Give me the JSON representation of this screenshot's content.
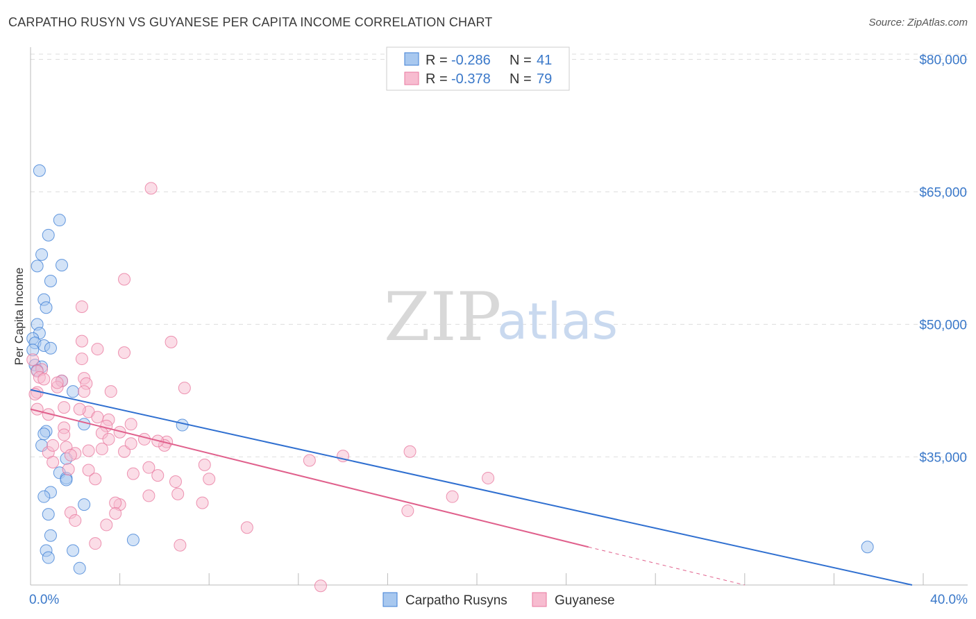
{
  "chart_data": {
    "type": "scatter",
    "title": "CARPATHO RUSYN VS GUYANESE PER CAPITA INCOME CORRELATION CHART",
    "source": "Source: ZipAtlas.com",
    "xlabel": "",
    "ylabel": "Per Capita Income",
    "xlim": [
      0,
      40
    ],
    "ylim": [
      20500,
      82000
    ],
    "x_tick_labels": [
      "0.0%",
      "40.0%"
    ],
    "y_ticks": [
      35000,
      50000,
      65000,
      80000
    ],
    "y_tick_labels": [
      "$35,000",
      "$50,000",
      "$65,000",
      "$80,000"
    ],
    "watermark": {
      "part1": "ZIP",
      "part2": "atlas"
    },
    "stats": [
      {
        "r_label": "R = ",
        "r": "-0.286",
        "n_label": "N = ",
        "n": "41"
      },
      {
        "r_label": "R = ",
        "r": "-0.378",
        "n_label": "N = ",
        "n": "79"
      }
    ],
    "colors": {
      "blue_fill": "#a8c8ef",
      "blue_stroke": "#3f7fd6",
      "blue_line": "#2f6fd0",
      "pink_fill": "#f7bcd0",
      "pink_stroke": "#e9799f",
      "pink_line": "#e0608c",
      "tick_text": "#3a78c9",
      "grid": "#dddddd"
    },
    "series": [
      {
        "name": "Carpatho Rusyns",
        "regression": {
          "x": [
            0,
            39.5
          ],
          "y": [
            42600,
            20500
          ],
          "dashed_from": null
        },
        "points": [
          [
            0.4,
            67400
          ],
          [
            1.3,
            61800
          ],
          [
            0.8,
            60100
          ],
          [
            0.5,
            57900
          ],
          [
            1.4,
            56700
          ],
          [
            0.3,
            56600
          ],
          [
            0.9,
            54900
          ],
          [
            0.6,
            52800
          ],
          [
            0.7,
            51900
          ],
          [
            0.3,
            50000
          ],
          [
            0.4,
            49000
          ],
          [
            0.1,
            48400
          ],
          [
            0.2,
            47900
          ],
          [
            0.6,
            47600
          ],
          [
            0.9,
            47300
          ],
          [
            0.1,
            47100
          ],
          [
            0.2,
            45400
          ],
          [
            0.5,
            45200
          ],
          [
            0.3,
            44800
          ],
          [
            1.4,
            43600
          ],
          [
            1.9,
            42400
          ],
          [
            0.7,
            37900
          ],
          [
            0.6,
            37600
          ],
          [
            0.5,
            36300
          ],
          [
            1.6,
            34800
          ],
          [
            1.3,
            33200
          ],
          [
            1.6,
            32600
          ],
          [
            1.6,
            32400
          ],
          [
            2.4,
            38700
          ],
          [
            0.9,
            31000
          ],
          [
            0.6,
            30500
          ],
          [
            2.4,
            29600
          ],
          [
            0.8,
            28500
          ],
          [
            0.9,
            26100
          ],
          [
            4.6,
            25600
          ],
          [
            0.7,
            24400
          ],
          [
            1.9,
            24400
          ],
          [
            0.8,
            23600
          ],
          [
            2.2,
            22400
          ],
          [
            37.5,
            24800
          ],
          [
            6.8,
            38600
          ]
        ]
      },
      {
        "name": "Guyanese",
        "regression": {
          "x": [
            0,
            25
          ],
          "y": [
            40400,
            24800
          ],
          "dashed_from": 25,
          "dashed_to": [
            32,
            20500
          ]
        },
        "points": [
          [
            5.4,
            65400
          ],
          [
            4.2,
            55100
          ],
          [
            2.3,
            52000
          ],
          [
            2.3,
            48100
          ],
          [
            6.3,
            48000
          ],
          [
            3.0,
            47200
          ],
          [
            4.2,
            46800
          ],
          [
            2.3,
            46100
          ],
          [
            0.1,
            46000
          ],
          [
            0.5,
            44900
          ],
          [
            0.3,
            44700
          ],
          [
            0.4,
            44000
          ],
          [
            1.4,
            43600
          ],
          [
            2.4,
            43900
          ],
          [
            1.2,
            42900
          ],
          [
            2.5,
            43300
          ],
          [
            0.3,
            42300
          ],
          [
            0.2,
            42100
          ],
          [
            3.6,
            42400
          ],
          [
            6.9,
            42800
          ],
          [
            2.4,
            42400
          ],
          [
            1.5,
            40600
          ],
          [
            0.3,
            40400
          ],
          [
            2.6,
            40100
          ],
          [
            0.8,
            39800
          ],
          [
            3.0,
            39500
          ],
          [
            3.5,
            39200
          ],
          [
            1.5,
            38300
          ],
          [
            3.4,
            38500
          ],
          [
            4.5,
            38700
          ],
          [
            1.5,
            37500
          ],
          [
            3.2,
            37700
          ],
          [
            4.0,
            37800
          ],
          [
            5.1,
            37000
          ],
          [
            3.5,
            37000
          ],
          [
            6.1,
            36700
          ],
          [
            6.0,
            36300
          ],
          [
            1.6,
            36100
          ],
          [
            3.2,
            35900
          ],
          [
            4.2,
            35600
          ],
          [
            2.0,
            35400
          ],
          [
            0.8,
            35500
          ],
          [
            2.6,
            35700
          ],
          [
            4.5,
            36500
          ],
          [
            5.7,
            36800
          ],
          [
            1.8,
            35200
          ],
          [
            17.0,
            35600
          ],
          [
            14.0,
            35100
          ],
          [
            12.5,
            34600
          ],
          [
            7.8,
            34100
          ],
          [
            1.0,
            34400
          ],
          [
            1.7,
            33600
          ],
          [
            2.6,
            33500
          ],
          [
            5.3,
            33800
          ],
          [
            4.6,
            33100
          ],
          [
            5.7,
            32900
          ],
          [
            2.9,
            32500
          ],
          [
            6.5,
            32200
          ],
          [
            8.0,
            32500
          ],
          [
            20.5,
            32600
          ],
          [
            6.6,
            30800
          ],
          [
            5.3,
            30600
          ],
          [
            7.7,
            29800
          ],
          [
            18.9,
            30500
          ],
          [
            4.0,
            29600
          ],
          [
            3.8,
            29800
          ],
          [
            1.8,
            28700
          ],
          [
            16.9,
            28900
          ],
          [
            3.8,
            28600
          ],
          [
            3.4,
            27300
          ],
          [
            9.7,
            27000
          ],
          [
            2.0,
            27800
          ],
          [
            2.9,
            25200
          ],
          [
            6.7,
            25000
          ],
          [
            1.2,
            43400
          ],
          [
            0.6,
            43800
          ],
          [
            13.0,
            20400
          ],
          [
            1.0,
            36300
          ],
          [
            2.2,
            40400
          ]
        ]
      }
    ]
  }
}
